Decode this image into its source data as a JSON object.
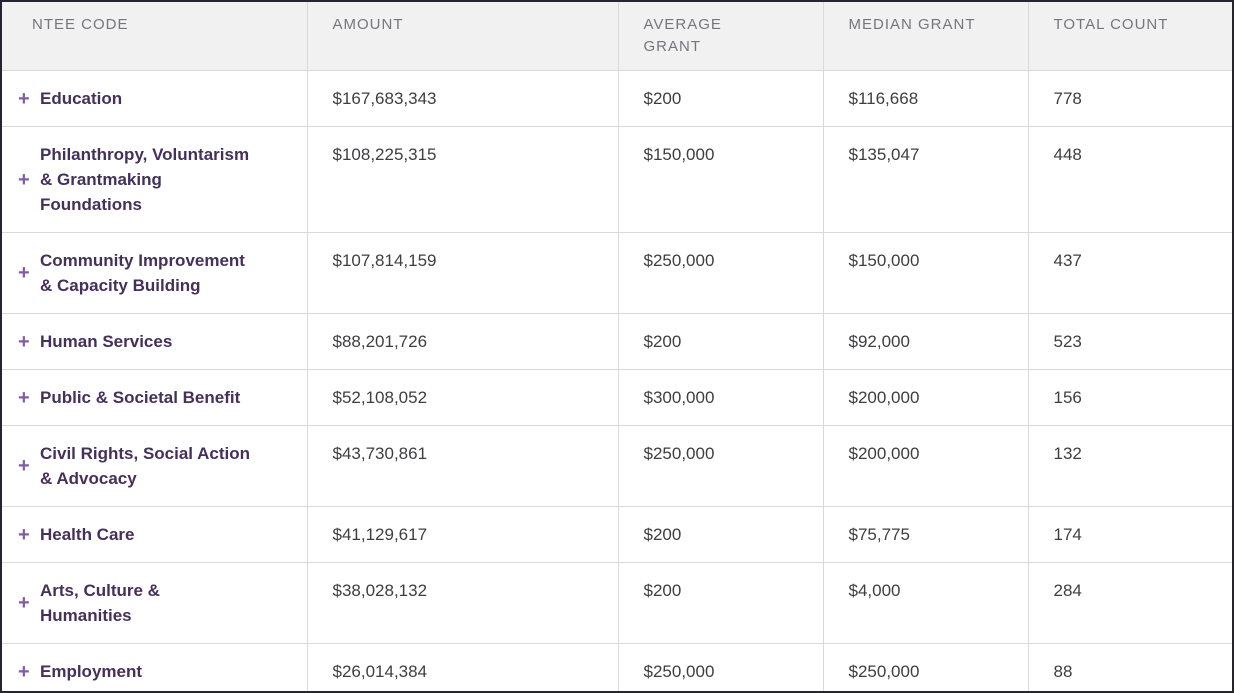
{
  "table": {
    "expand_icon": "+",
    "columns": [
      {
        "key": "ntee",
        "label": "NTEE CODE"
      },
      {
        "key": "amount",
        "label": "AMOUNT"
      },
      {
        "key": "average",
        "label": "AVERAGE GRANT"
      },
      {
        "key": "median",
        "label": "MEDIAN GRANT"
      },
      {
        "key": "count",
        "label": "TOTAL COUNT"
      }
    ],
    "rows": [
      {
        "ntee": "Education",
        "amount": "$167,683,343",
        "average": "$200",
        "median": "$116,668",
        "count": "778"
      },
      {
        "ntee": "Philanthropy, Voluntarism & Grantmaking Foundations",
        "amount": "$108,225,315",
        "average": "$150,000",
        "median": "$135,047",
        "count": "448"
      },
      {
        "ntee": "Community Improvement & Capacity Building",
        "amount": "$107,814,159",
        "average": "$250,000",
        "median": "$150,000",
        "count": "437"
      },
      {
        "ntee": "Human Services",
        "amount": "$88,201,726",
        "average": "$200",
        "median": "$92,000",
        "count": "523"
      },
      {
        "ntee": "Public & Societal Benefit",
        "amount": "$52,108,052",
        "average": "$300,000",
        "median": "$200,000",
        "count": "156"
      },
      {
        "ntee": "Civil Rights, Social Action & Advocacy",
        "amount": "$43,730,861",
        "average": "$250,000",
        "median": "$200,000",
        "count": "132"
      },
      {
        "ntee": "Health Care",
        "amount": "$41,129,617",
        "average": "$200",
        "median": "$75,775",
        "count": "174"
      },
      {
        "ntee": "Arts, Culture & Humanities",
        "amount": "$38,028,132",
        "average": "$200",
        "median": "$4,000",
        "count": "284"
      },
      {
        "ntee": "Employment",
        "amount": "$26,014,384",
        "average": "$250,000",
        "median": "$250,000",
        "count": "88"
      }
    ]
  },
  "colors": {
    "header_bg": "#f1f1f2",
    "header_text": "#75767b",
    "category_text": "#44305c",
    "expand_icon": "#7e5ea8",
    "body_text": "#3e3e41",
    "row_border": "#d9d9d9",
    "outer_border": "#26252f"
  }
}
